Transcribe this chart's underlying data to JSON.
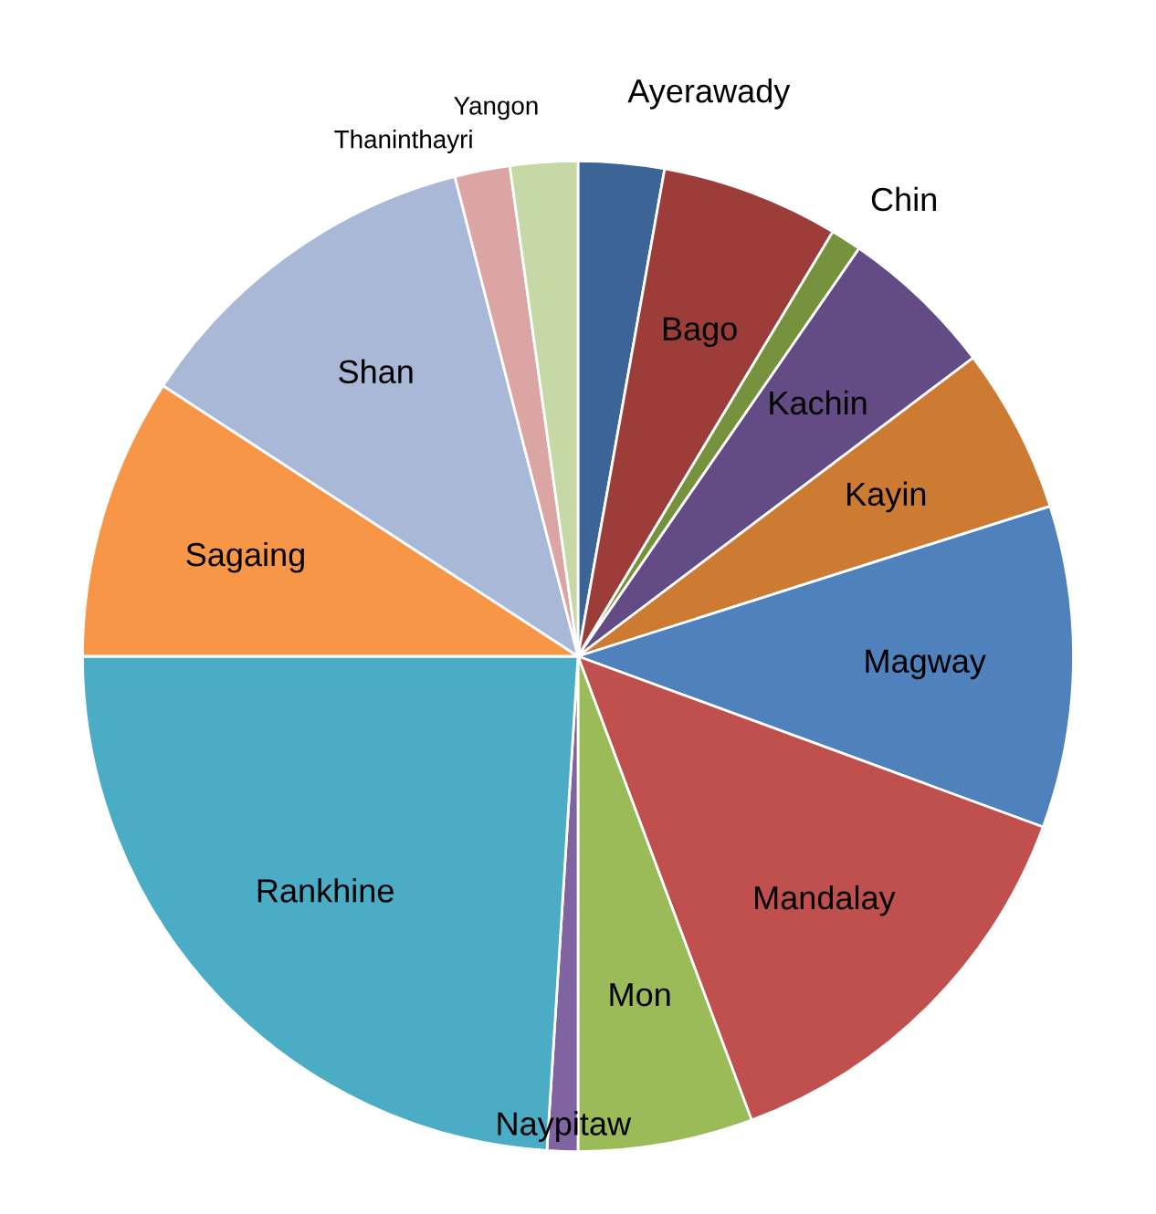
{
  "chart_data": {
    "type": "pie",
    "categories": [
      "Ayerawady",
      "Bago",
      "Chin",
      "Kachin",
      "Kayin",
      "Magway",
      "Mandalay",
      "Mon",
      "Naypitaw",
      "Rankhine",
      "Sagaing",
      "Shan",
      "Thaninthayri",
      "Yangon"
    ],
    "values": [
      2.8,
      5.8,
      1.0,
      5.1,
      5.4,
      10.5,
      13.7,
      5.7,
      1.0,
      24.0,
      9.2,
      11.8,
      1.8,
      2.2
    ],
    "colors": [
      "#3c6497",
      "#9c3d3a",
      "#76923c",
      "#634c86",
      "#cd7a33",
      "#4f81bd",
      "#c0504d",
      "#9bbb59",
      "#8064a2",
      "#4bacc6",
      "#f79646",
      "#a9b8d6",
      "#dba5a4",
      "#c5d8a6"
    ],
    "legend": false
  }
}
